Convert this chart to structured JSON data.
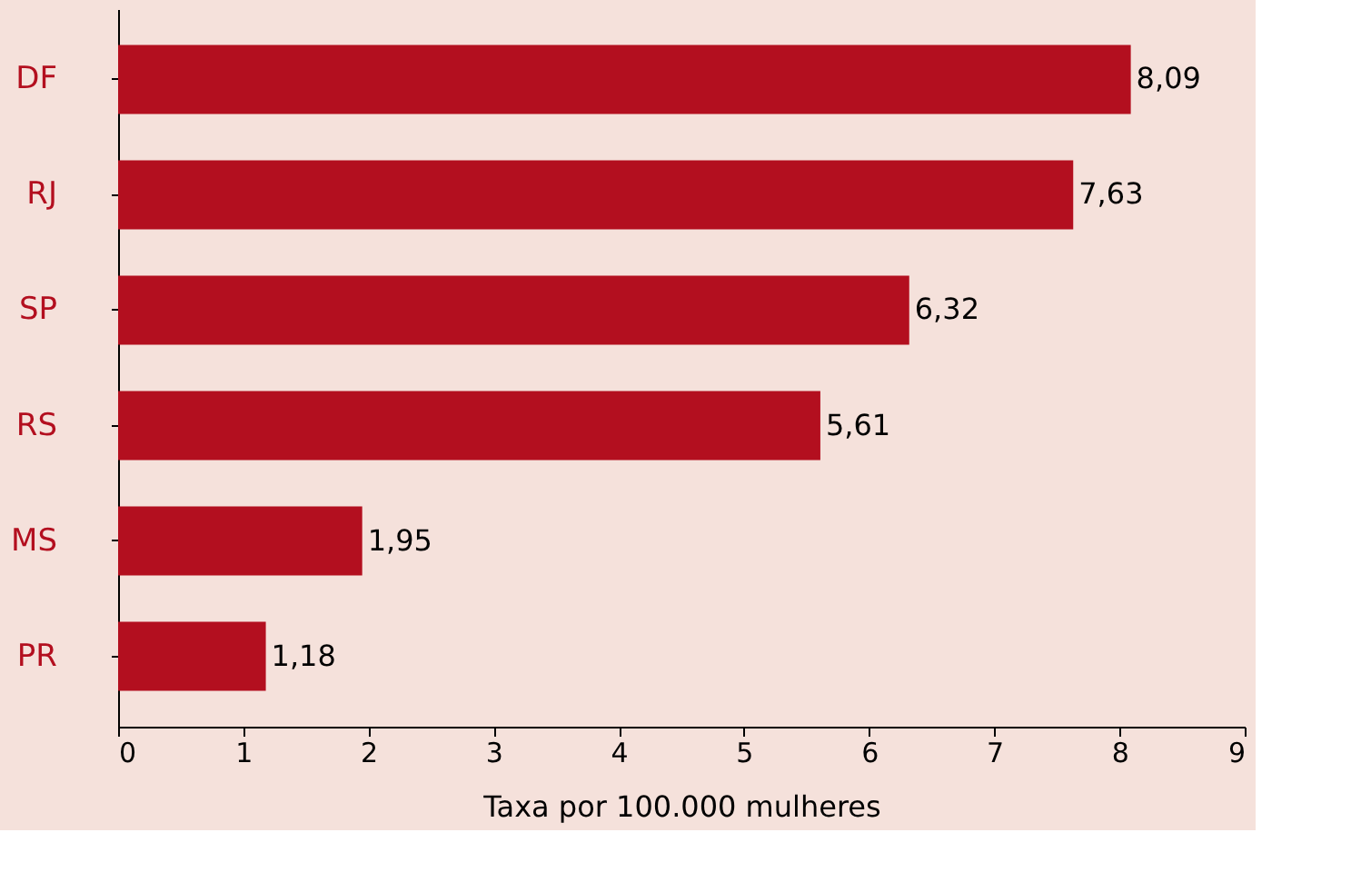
{
  "chart_data": {
    "type": "bar",
    "orientation": "horizontal",
    "xlabel": "Taxa por 100.000 mulheres",
    "categories": [
      "DF",
      "RJ",
      "SP",
      "RS",
      "MS",
      "PR"
    ],
    "values": [
      8.09,
      7.63,
      6.32,
      5.61,
      1.95,
      1.18
    ],
    "value_labels": [
      "8,09",
      "7,63",
      "6,32",
      "5,61",
      "1,95",
      "1,18"
    ],
    "color": "#b30f1f",
    "xlim": [
      0,
      9
    ],
    "xticks": [
      0,
      1,
      2,
      3,
      4,
      5,
      6,
      7,
      8,
      9
    ],
    "grid": false
  }
}
